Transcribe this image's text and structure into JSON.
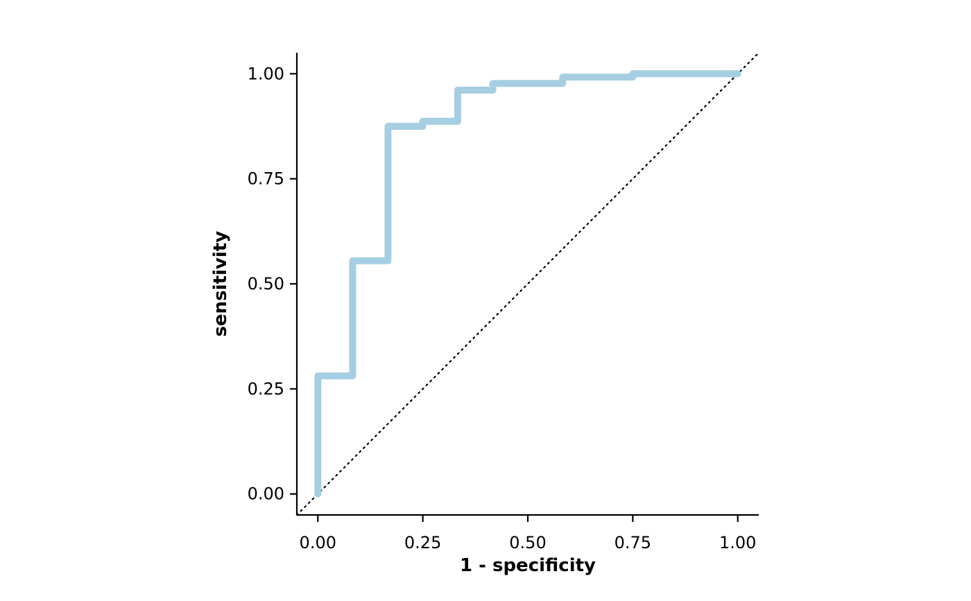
{
  "chart_data": {
    "type": "line",
    "title": "",
    "xlabel": "1 - specificity",
    "ylabel": "sensitivity",
    "xlim": [
      -0.05,
      1.05
    ],
    "ylim": [
      -0.05,
      1.05
    ],
    "x_ticks": [
      0,
      0.25,
      0.5,
      0.75,
      1
    ],
    "x_tick_labels": [
      "0.00",
      "0.25",
      "0.50",
      "0.75",
      "1.00"
    ],
    "y_ticks": [
      0,
      0.25,
      0.5,
      0.75,
      1
    ],
    "y_tick_labels": [
      "0.00",
      "0.25",
      "0.50",
      "0.75",
      "1.00"
    ],
    "grid": false,
    "series": [
      {
        "style": "step",
        "color": "#a6cee3",
        "points": [
          {
            "x": 0.0,
            "y": 0.0
          },
          {
            "x": 0.0,
            "y": 0.281
          },
          {
            "x": 0.083,
            "y": 0.281
          },
          {
            "x": 0.083,
            "y": 0.555
          },
          {
            "x": 0.167,
            "y": 0.555
          },
          {
            "x": 0.167,
            "y": 0.875
          },
          {
            "x": 0.25,
            "y": 0.875
          },
          {
            "x": 0.25,
            "y": 0.887
          },
          {
            "x": 0.333,
            "y": 0.887
          },
          {
            "x": 0.333,
            "y": 0.961
          },
          {
            "x": 0.417,
            "y": 0.961
          },
          {
            "x": 0.417,
            "y": 0.977
          },
          {
            "x": 0.583,
            "y": 0.977
          },
          {
            "x": 0.583,
            "y": 0.992
          },
          {
            "x": 0.75,
            "y": 0.992
          },
          {
            "x": 0.75,
            "y": 1.0
          },
          {
            "x": 1.0,
            "y": 1.0
          }
        ]
      }
    ],
    "reference_line": {
      "style": "dotted",
      "color": "#000000",
      "from": [
        -0.05,
        -0.05
      ],
      "to": [
        1.05,
        1.05
      ]
    }
  }
}
